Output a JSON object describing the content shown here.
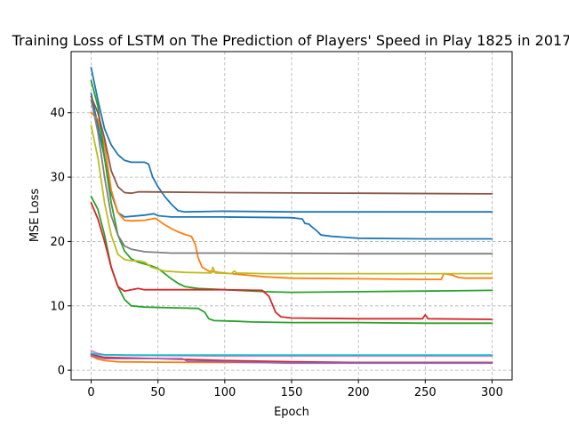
{
  "chart_data": {
    "type": "line",
    "title": "Training Loss of LSTM on The Prediction of Players' Speed in Play 1825 in 2017",
    "xlabel": "Epoch",
    "ylabel": "MSE Loss",
    "xlim": [
      -15,
      315
    ],
    "ylim": [
      -1.5,
      49.5
    ],
    "xticks": [
      0,
      50,
      100,
      150,
      200,
      250,
      300
    ],
    "yticks": [
      0,
      10,
      20,
      30,
      40
    ],
    "grid": true,
    "legend": "none",
    "series": [
      {
        "color": "#1f77b4",
        "points": [
          [
            0,
            47
          ],
          [
            5,
            42
          ],
          [
            10,
            37.5
          ],
          [
            15,
            35
          ],
          [
            20,
            33.5
          ],
          [
            25,
            32.6
          ],
          [
            30,
            32.3
          ],
          [
            35,
            32.3
          ],
          [
            40,
            32.3
          ],
          [
            43,
            32
          ],
          [
            46,
            30
          ],
          [
            50,
            28.5
          ],
          [
            55,
            27
          ],
          [
            60,
            25.8
          ],
          [
            65,
            24.8
          ],
          [
            70,
            24.6
          ],
          [
            100,
            24.7
          ],
          [
            150,
            24.6
          ],
          [
            200,
            24.6
          ],
          [
            250,
            24.6
          ],
          [
            300,
            24.6
          ]
        ]
      },
      {
        "color": "#1f77b4",
        "points": [
          [
            0,
            43
          ],
          [
            5,
            38
          ],
          [
            10,
            33
          ],
          [
            15,
            27.5
          ],
          [
            20,
            24.5
          ],
          [
            25,
            23.8
          ],
          [
            30,
            23.9
          ],
          [
            40,
            24.1
          ],
          [
            47,
            24.3
          ],
          [
            50,
            24
          ],
          [
            60,
            23.8
          ],
          [
            100,
            23.8
          ],
          [
            150,
            23.7
          ],
          [
            158,
            23.5
          ],
          [
            160,
            22.8
          ],
          [
            163,
            22.7
          ],
          [
            165,
            22.3
          ],
          [
            168,
            21.8
          ],
          [
            172,
            21
          ],
          [
            180,
            20.8
          ],
          [
            200,
            20.5
          ],
          [
            250,
            20.4
          ],
          [
            300,
            20.4
          ]
        ]
      },
      {
        "color": "#ff7f0e",
        "points": [
          [
            0,
            40
          ],
          [
            5,
            39
          ],
          [
            10,
            35
          ],
          [
            15,
            28
          ],
          [
            20,
            24.5
          ],
          [
            25,
            23.3
          ],
          [
            30,
            23.2
          ],
          [
            40,
            23.3
          ],
          [
            48,
            23.6
          ],
          [
            55,
            22.6
          ],
          [
            60,
            22
          ],
          [
            65,
            21.5
          ],
          [
            70,
            21.1
          ],
          [
            75,
            20.8
          ],
          [
            78,
            19.5
          ],
          [
            80,
            17.5
          ],
          [
            83,
            16
          ],
          [
            88,
            15.4
          ],
          [
            95,
            15.2
          ],
          [
            100,
            15.1
          ],
          [
            110,
            14.9
          ],
          [
            130,
            14.5
          ],
          [
            150,
            14.3
          ],
          [
            200,
            14.2
          ],
          [
            250,
            14.1
          ],
          [
            262,
            14.1
          ],
          [
            264,
            15
          ],
          [
            270,
            14.8
          ],
          [
            275,
            14.4
          ],
          [
            280,
            14.3
          ],
          [
            300,
            14.3
          ]
        ]
      },
      {
        "color": "#ff7f0e",
        "points": [
          [
            0,
            2.2
          ],
          [
            5,
            1.7
          ],
          [
            10,
            1.5
          ],
          [
            20,
            1.3
          ],
          [
            50,
            1.25
          ],
          [
            100,
            1.2
          ],
          [
            150,
            1.2
          ],
          [
            200,
            1.2
          ],
          [
            250,
            1.2
          ],
          [
            300,
            1.2
          ]
        ]
      },
      {
        "color": "#2ca02c",
        "points": [
          [
            0,
            27
          ],
          [
            5,
            25
          ],
          [
            10,
            21
          ],
          [
            15,
            16
          ],
          [
            20,
            13
          ],
          [
            25,
            11
          ],
          [
            30,
            10
          ],
          [
            40,
            9.8
          ],
          [
            60,
            9.7
          ],
          [
            80,
            9.6
          ],
          [
            85,
            9
          ],
          [
            88,
            8
          ],
          [
            92,
            7.7
          ],
          [
            110,
            7.6
          ],
          [
            120,
            7.5
          ],
          [
            150,
            7.4
          ],
          [
            200,
            7.4
          ],
          [
            250,
            7.3
          ],
          [
            300,
            7.3
          ]
        ]
      },
      {
        "color": "#2ca02c",
        "points": [
          [
            0,
            45
          ],
          [
            5,
            41
          ],
          [
            10,
            33
          ],
          [
            15,
            26
          ],
          [
            20,
            21
          ],
          [
            25,
            18.5
          ],
          [
            30,
            17.3
          ],
          [
            35,
            16.8
          ],
          [
            40,
            16.5
          ],
          [
            45,
            16.2
          ],
          [
            50,
            15.8
          ],
          [
            55,
            15
          ],
          [
            60,
            14.2
          ],
          [
            65,
            13.5
          ],
          [
            70,
            13
          ],
          [
            80,
            12.7
          ],
          [
            100,
            12.5
          ],
          [
            130,
            12.2
          ],
          [
            150,
            12.1
          ],
          [
            200,
            12.2
          ],
          [
            250,
            12.3
          ],
          [
            300,
            12.4
          ]
        ]
      },
      {
        "color": "#d62728",
        "points": [
          [
            0,
            26
          ],
          [
            5,
            23.5
          ],
          [
            10,
            20
          ],
          [
            15,
            16
          ],
          [
            20,
            13
          ],
          [
            25,
            12.3
          ],
          [
            30,
            12.5
          ],
          [
            35,
            12.7
          ],
          [
            40,
            12.5
          ],
          [
            60,
            12.5
          ],
          [
            100,
            12.5
          ],
          [
            128,
            12.4
          ],
          [
            133,
            11.5
          ],
          [
            135,
            10.5
          ],
          [
            138,
            9
          ],
          [
            142,
            8.3
          ],
          [
            150,
            8.1
          ],
          [
            200,
            8
          ],
          [
            248,
            8
          ],
          [
            250,
            8.6
          ],
          [
            252,
            8
          ],
          [
            300,
            7.9
          ]
        ]
      },
      {
        "color": "#d62728",
        "points": [
          [
            0,
            2.5
          ],
          [
            5,
            2.2
          ],
          [
            10,
            2
          ],
          [
            50,
            1.8
          ],
          [
            100,
            1.5
          ],
          [
            150,
            1.3
          ],
          [
            200,
            1.2
          ],
          [
            250,
            1.2
          ],
          [
            300,
            1.2
          ]
        ]
      },
      {
        "color": "#9467bd",
        "points": [
          [
            0,
            2.3
          ],
          [
            5,
            2
          ],
          [
            10,
            1.8
          ],
          [
            40,
            1.8
          ],
          [
            68,
            1.8
          ],
          [
            72,
            1.4
          ],
          [
            100,
            1.3
          ],
          [
            150,
            1.1
          ],
          [
            200,
            1.1
          ],
          [
            250,
            1.1
          ],
          [
            300,
            1.1
          ]
        ]
      },
      {
        "color": "#8c564b",
        "points": [
          [
            0,
            42.5
          ],
          [
            5,
            40
          ],
          [
            10,
            36
          ],
          [
            15,
            31
          ],
          [
            20,
            28.5
          ],
          [
            25,
            27.6
          ],
          [
            30,
            27.5
          ],
          [
            35,
            27.7
          ],
          [
            40,
            27.7
          ],
          [
            100,
            27.6
          ],
          [
            200,
            27.5
          ],
          [
            300,
            27.4
          ]
        ]
      },
      {
        "color": "#e377c2",
        "points": [
          [
            0,
            3
          ],
          [
            5,
            2.6
          ],
          [
            10,
            2.4
          ],
          [
            30,
            2.3
          ],
          [
            100,
            2.2
          ],
          [
            200,
            2.2
          ],
          [
            300,
            2.2
          ]
        ]
      },
      {
        "color": "#7f7f7f",
        "points": [
          [
            0,
            42
          ],
          [
            5,
            37
          ],
          [
            10,
            30
          ],
          [
            15,
            24
          ],
          [
            20,
            21
          ],
          [
            25,
            19.3
          ],
          [
            30,
            18.8
          ],
          [
            40,
            18.4
          ],
          [
            60,
            18.2
          ],
          [
            100,
            18.2
          ],
          [
            200,
            18.1
          ],
          [
            300,
            18.1
          ]
        ]
      },
      {
        "color": "#bcbd22",
        "points": [
          [
            0,
            38
          ],
          [
            5,
            33
          ],
          [
            10,
            26
          ],
          [
            15,
            21
          ],
          [
            20,
            18
          ],
          [
            25,
            17.2
          ],
          [
            30,
            17
          ],
          [
            35,
            17
          ],
          [
            40,
            16.8
          ],
          [
            45,
            16
          ],
          [
            55,
            15.4
          ],
          [
            70,
            15.2
          ],
          [
            90,
            15.1
          ],
          [
            91,
            16
          ],
          [
            93,
            15.1
          ],
          [
            105,
            15
          ],
          [
            107,
            15.4
          ],
          [
            109,
            15.1
          ],
          [
            130,
            15
          ],
          [
            200,
            15
          ],
          [
            250,
            15
          ],
          [
            300,
            15
          ]
        ]
      },
      {
        "color": "#17becf",
        "points": [
          [
            0,
            2.6
          ],
          [
            5,
            2.45
          ],
          [
            10,
            2.4
          ],
          [
            30,
            2.35
          ],
          [
            100,
            2.35
          ],
          [
            200,
            2.35
          ],
          [
            300,
            2.35
          ]
        ]
      }
    ]
  }
}
